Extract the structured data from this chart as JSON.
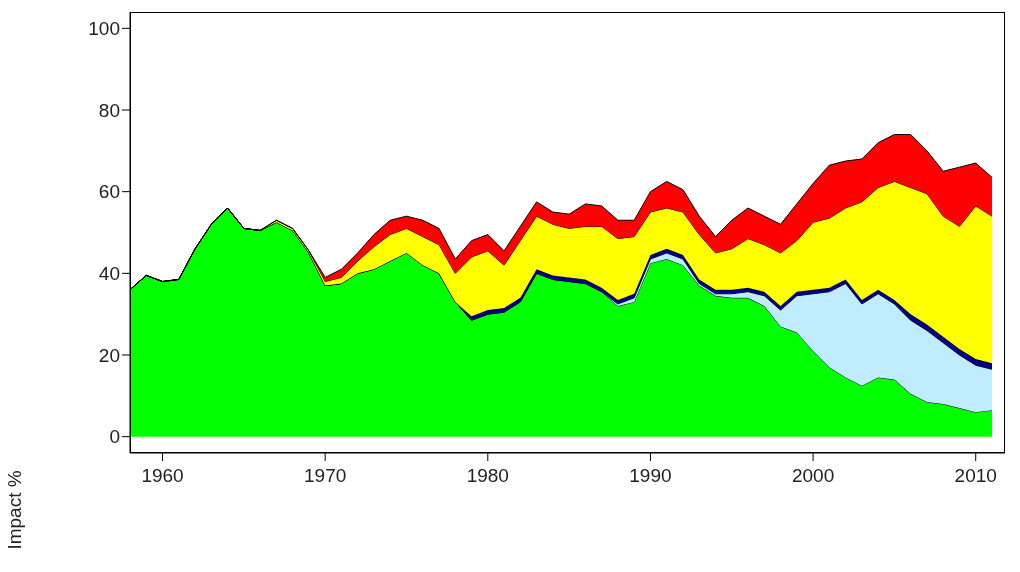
{
  "chart_data": {
    "type": "area",
    "stacked": true,
    "ylabel": "Impact %",
    "x": [
      1958,
      1959,
      1960,
      1961,
      1962,
      1963,
      1964,
      1965,
      1966,
      1967,
      1968,
      1969,
      1970,
      1971,
      1972,
      1973,
      1974,
      1975,
      1976,
      1977,
      1978,
      1979,
      1980,
      1981,
      1982,
      1983,
      1984,
      1985,
      1986,
      1987,
      1988,
      1989,
      1990,
      1991,
      1992,
      1993,
      1994,
      1995,
      1996,
      1997,
      1998,
      1999,
      2000,
      2001,
      2002,
      2003,
      2004,
      2005,
      2006,
      2007,
      2008,
      2009,
      2010,
      2011
    ],
    "series": [
      {
        "color": "#00ff00",
        "values": [
          36,
          39.5,
          38,
          38.5,
          46,
          52,
          56,
          51,
          50.5,
          52.5,
          50.5,
          45,
          37,
          37.5,
          40,
          41,
          43,
          45,
          42,
          40,
          33,
          28.5,
          30,
          30.5,
          33,
          40,
          38.5,
          38,
          37.5,
          35.5,
          32,
          33,
          42.5,
          43.5,
          42,
          37,
          34.5,
          34,
          34,
          32,
          27,
          25.5,
          21,
          17,
          14.5,
          12.5,
          14.5,
          14,
          10.5,
          8.5,
          8,
          7,
          6,
          6.5
        ]
      },
      {
        "color": "#c0ecff",
        "values": [
          0,
          0,
          0,
          0,
          0,
          0,
          0,
          0,
          0,
          0,
          0,
          0,
          0,
          0,
          0,
          0,
          0,
          0,
          0,
          0,
          0,
          0,
          0,
          0,
          0,
          0,
          0,
          0,
          0,
          0,
          0.5,
          1,
          1,
          1.5,
          1.5,
          0.5,
          0.5,
          1,
          1.5,
          2.5,
          4,
          9,
          14,
          18.5,
          23,
          20,
          20.5,
          18.5,
          18,
          17.5,
          15,
          13,
          11.5,
          10
        ]
      },
      {
        "color": "#000080",
        "values": [
          0,
          0,
          0,
          0,
          0,
          0,
          0,
          0,
          0,
          0,
          0,
          0,
          0,
          0,
          0,
          0,
          0,
          0,
          0,
          0,
          0,
          1,
          1,
          1,
          1,
          1,
          1,
          1,
          1,
          1,
          1,
          1,
          1,
          1,
          1,
          1,
          1,
          1,
          1,
          1,
          1,
          1,
          1,
          1,
          1,
          1,
          1,
          1,
          1.5,
          1.5,
          1.5,
          1.5,
          1.5,
          1.5
        ]
      },
      {
        "color": "#ffff00",
        "values": [
          0,
          0,
          0,
          0,
          0,
          0,
          0,
          0,
          0,
          0.5,
          0.5,
          0.5,
          1,
          1.5,
          3,
          5.5,
          6.5,
          6,
          7,
          7,
          7,
          14.5,
          14.5,
          10.5,
          14,
          13,
          12.5,
          12,
          13,
          15,
          15,
          14,
          10.5,
          10,
          10.5,
          11,
          9,
          10,
          12,
          11.5,
          13,
          12.5,
          16.5,
          17,
          17.5,
          24,
          25,
          29,
          31,
          32,
          29.5,
          30,
          37.5,
          36
        ]
      },
      {
        "color": "#ff0000",
        "values": [
          0,
          0,
          0,
          0,
          0,
          0,
          0,
          0,
          0,
          0,
          0,
          0,
          1,
          2,
          2,
          3,
          3.5,
          3,
          4,
          4,
          3.5,
          4,
          4,
          3.5,
          3.5,
          3.5,
          3,
          3.5,
          5.5,
          5,
          4.5,
          4,
          5,
          6.5,
          5.5,
          4.5,
          4,
          7,
          7.5,
          7,
          7,
          9,
          9.5,
          13,
          11.5,
          10.5,
          11,
          11.5,
          13,
          10.5,
          11,
          14.5,
          10.5,
          9.5
        ]
      }
    ],
    "xlim": [
      1958,
      2011.8
    ],
    "xticks": [
      1960,
      1970,
      1980,
      1990,
      2000,
      2010
    ],
    "ylim": [
      -4,
      104
    ],
    "yticks": [
      0,
      20,
      40,
      60,
      80,
      100
    ],
    "grid": false,
    "legend": false
  }
}
